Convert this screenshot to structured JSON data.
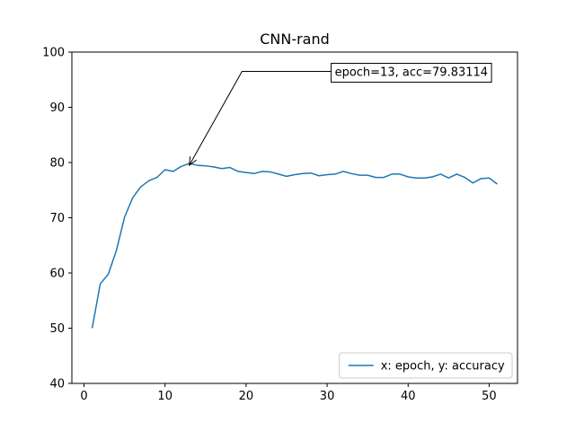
{
  "chart_data": {
    "type": "line",
    "title": "CNN-rand",
    "xlabel": "",
    "ylabel": "",
    "xlim": [
      -1.5,
      53.5
    ],
    "ylim": [
      40,
      100
    ],
    "xticks": [
      0,
      10,
      20,
      30,
      40,
      50
    ],
    "yticks": [
      40,
      50,
      60,
      70,
      80,
      90,
      100
    ],
    "grid": false,
    "legend_position": "lower right",
    "series": [
      {
        "name": "x: epoch, y: accuracy",
        "color": "#1f77b4",
        "x": [
          1,
          2,
          3,
          4,
          5,
          6,
          7,
          8,
          9,
          10,
          11,
          12,
          13,
          14,
          15,
          16,
          17,
          18,
          19,
          20,
          21,
          22,
          23,
          24,
          25,
          26,
          27,
          28,
          29,
          30,
          31,
          32,
          33,
          34,
          35,
          36,
          37,
          38,
          39,
          40,
          41,
          42,
          43,
          44,
          45,
          46,
          47,
          48,
          49,
          50,
          51
        ],
        "y": [
          50.0,
          58.0,
          59.8,
          64.1,
          70.1,
          73.6,
          75.6,
          76.7,
          77.3,
          78.7,
          78.4,
          79.3,
          79.83,
          79.5,
          79.4,
          79.2,
          78.9,
          79.1,
          78.4,
          78.2,
          78.0,
          78.4,
          78.3,
          77.9,
          77.5,
          77.8,
          78.0,
          78.1,
          77.6,
          77.8,
          77.9,
          78.4,
          78.0,
          77.7,
          77.7,
          77.3,
          77.3,
          77.9,
          77.9,
          77.4,
          77.2,
          77.2,
          77.4,
          77.9,
          77.2,
          77.9,
          77.3,
          76.3,
          77.1,
          77.2,
          76.1
        ]
      }
    ],
    "annotation": {
      "text": "epoch=13, acc=79.83114",
      "point_x": 13,
      "point_y": 79.83114,
      "text_x": 30.5,
      "text_y": 96.5
    }
  }
}
